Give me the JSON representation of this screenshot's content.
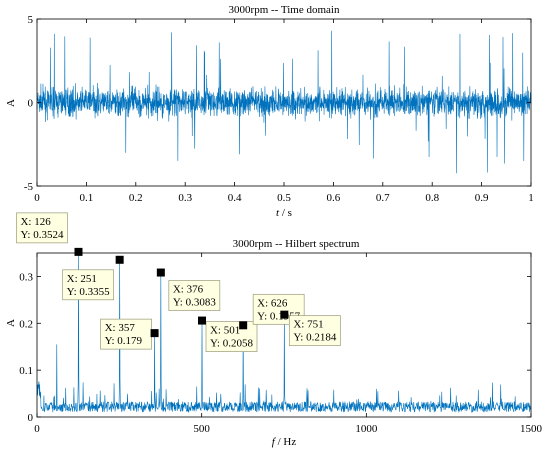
{
  "colors": {
    "series": "#0072BD",
    "axis": "#000000",
    "marker": "#000000",
    "tip_bg": "#FFFFE1",
    "tip_border": "#9A9A7A"
  },
  "chart_data": [
    {
      "type": "line",
      "title": "3000rpm -- Time domain",
      "xlabel_var": "t",
      "xlabel_unit": " / s",
      "ylabel": "A",
      "xlim": [
        0,
        1
      ],
      "ylim": [
        -5,
        5
      ],
      "xticks": [
        0,
        0.1,
        0.2,
        0.3,
        0.4,
        0.5,
        0.6,
        0.7,
        0.8,
        0.9,
        1
      ],
      "xtick_labels": [
        "0",
        "0.1",
        "0.2",
        "0.3",
        "0.4",
        "0.5",
        "0.6",
        "0.7",
        "0.8",
        "0.9",
        "1"
      ],
      "yticks": [
        -5,
        0,
        5
      ],
      "ytick_labels": [
        "-5",
        "0",
        "5"
      ],
      "grid": false,
      "series": [
        {
          "description": "Dense vibration signal, amplitude mostly within ±1.5 with occasional spikes reaching about ±4.5",
          "typical_amplitude": 1.5,
          "peak_amplitude": 4.5
        }
      ]
    },
    {
      "type": "line",
      "title": "3000rpm -- Hilbert spectrum",
      "xlabel_var": "f",
      "xlabel_unit": " / Hz",
      "ylabel": "A",
      "xlim": [
        0,
        1500
      ],
      "ylim": [
        0,
        0.35
      ],
      "xticks": [
        0,
        500,
        1000,
        1500
      ],
      "xtick_labels": [
        "0",
        "500",
        "1000",
        "1500"
      ],
      "yticks": [
        0,
        0.1,
        0.2,
        0.3
      ],
      "ytick_labels": [
        "0",
        "0.1",
        "0.2",
        "0.3"
      ],
      "grid": false,
      "noise_floor": 0.03,
      "peaks": [
        {
          "x": 126,
          "y": 0.3524,
          "label_x": "X: 126",
          "label_y": "Y: 0.3524"
        },
        {
          "x": 251,
          "y": 0.3355,
          "label_x": "X: 251",
          "label_y": "Y: 0.3355"
        },
        {
          "x": 357,
          "y": 0.179,
          "label_x": "X: 357",
          "label_y": "Y: 0.179"
        },
        {
          "x": 376,
          "y": 0.3083,
          "label_x": "X: 376",
          "label_y": "Y: 0.3083"
        },
        {
          "x": 501,
          "y": 0.2058,
          "label_x": "X: 501",
          "label_y": "Y: 0.2058"
        },
        {
          "x": 626,
          "y": 0.1957,
          "label_x": "X: 626",
          "label_y": "Y: 0.1957"
        },
        {
          "x": 751,
          "y": 0.2184,
          "label_x": "X: 751",
          "label_y": "Y: 0.2184"
        }
      ]
    }
  ]
}
